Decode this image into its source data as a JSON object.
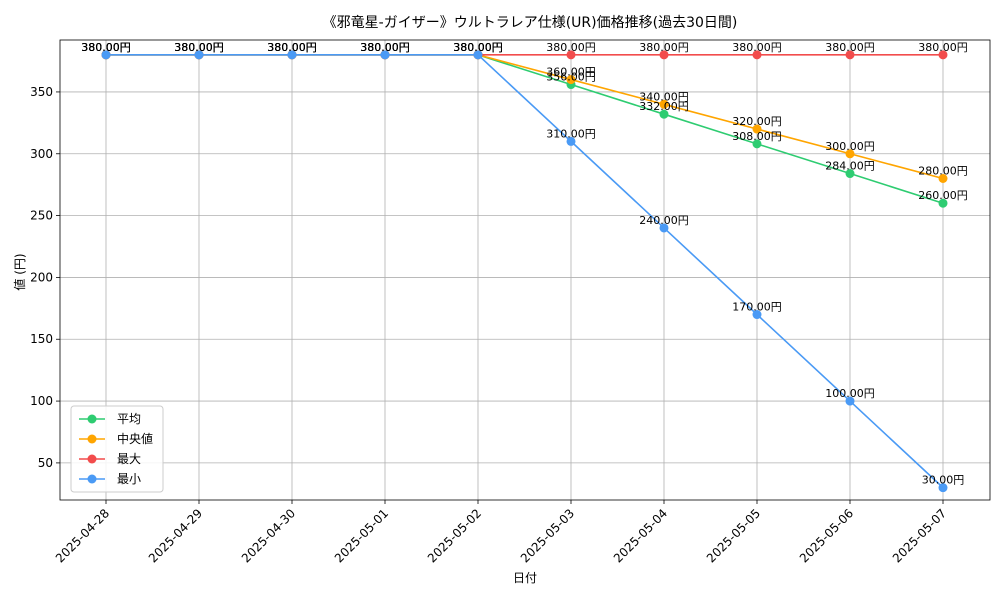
{
  "chart_data": {
    "type": "line",
    "title": "《邪竜星-ガイザー》ウルトラレア仕様(UR)価格推移(過去30日間)",
    "xlabel": "日付",
    "ylabel": "値 (円)",
    "categories": [
      "2025-04-28",
      "2025-04-29",
      "2025-04-30",
      "2025-05-01",
      "2025-05-02",
      "2025-05-03",
      "2025-05-04",
      "2025-05-05",
      "2025-05-06",
      "2025-05-07"
    ],
    "ylim": [
      20,
      392
    ],
    "yticks": [
      50,
      100,
      150,
      200,
      250,
      300,
      350
    ],
    "grid": true,
    "legend_position": "lower-left",
    "label_suffix": "円",
    "series": [
      {
        "name": "平均",
        "color": "#2ecc71",
        "values": [
          380,
          380,
          380,
          380,
          380,
          356,
          332,
          308,
          284,
          260
        ]
      },
      {
        "name": "中央値",
        "color": "#ffa500",
        "values": [
          380,
          380,
          380,
          380,
          380,
          360,
          340,
          320,
          300,
          280
        ]
      },
      {
        "name": "最大",
        "color": "#f24c4c",
        "values": [
          380,
          380,
          380,
          380,
          380,
          380,
          380,
          380,
          380,
          380
        ]
      },
      {
        "name": "最小",
        "color": "#4a9af5",
        "values": [
          380,
          380,
          380,
          380,
          380,
          310,
          240,
          170,
          100,
          30
        ]
      }
    ]
  }
}
